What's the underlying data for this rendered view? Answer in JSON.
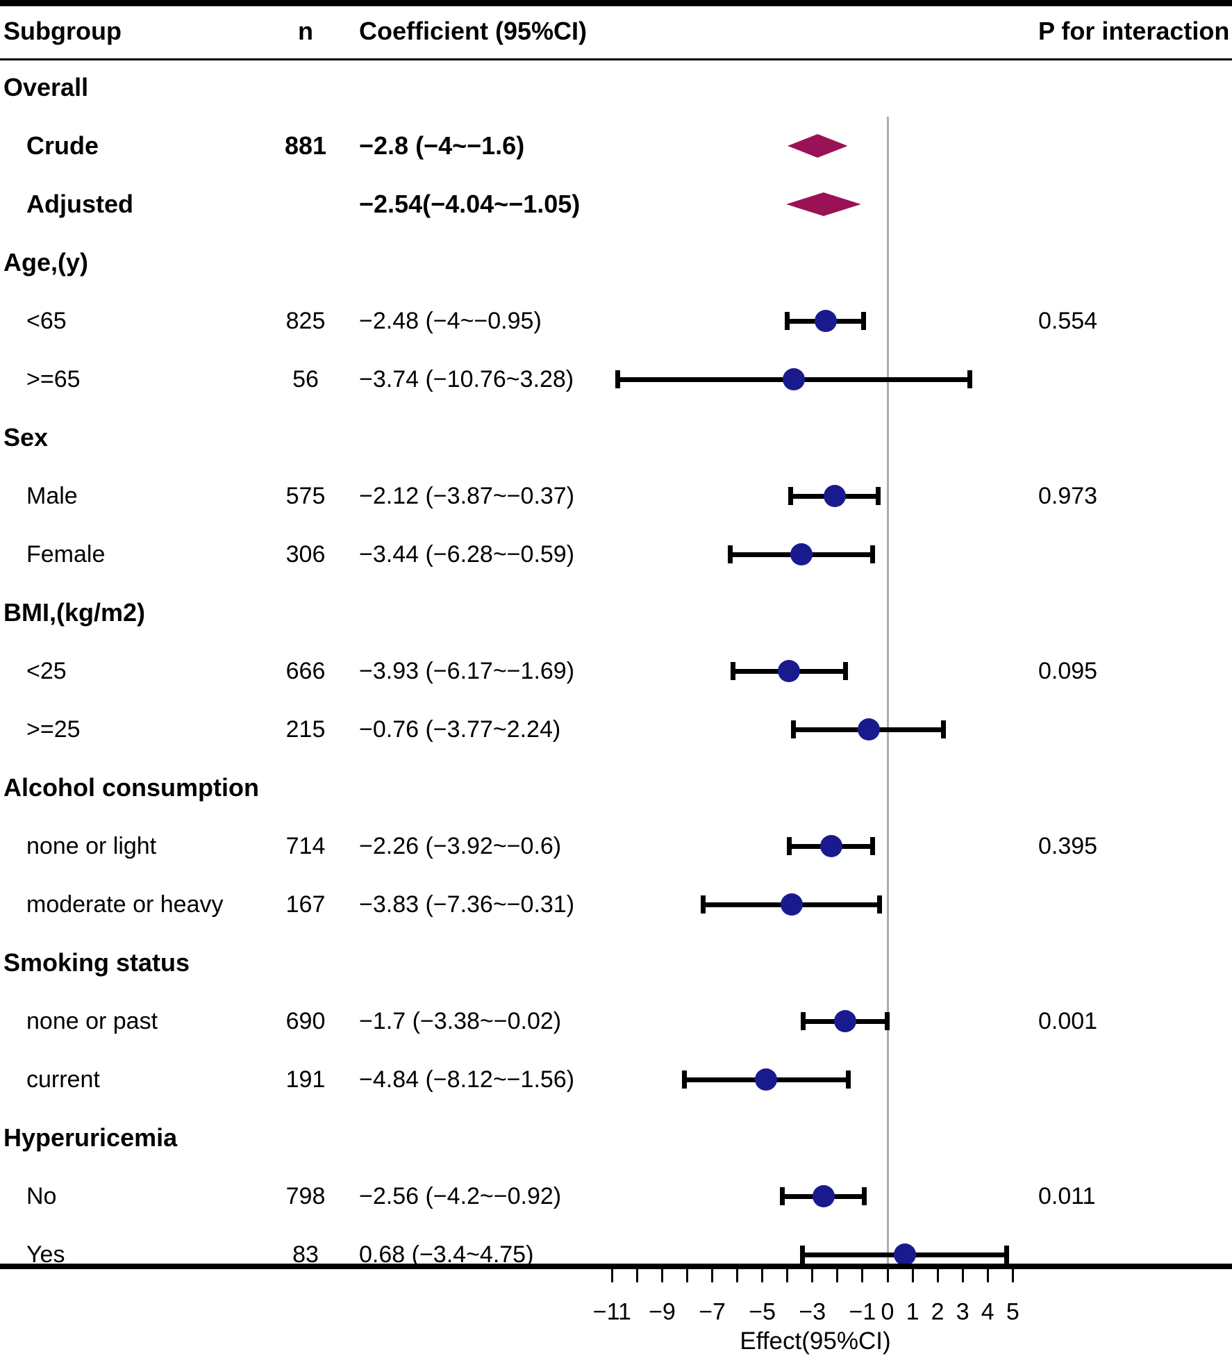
{
  "header": {
    "subgroup": "Subgroup",
    "n": "n",
    "coefficient": "Coefficient (95%CI)",
    "p_interaction": "P for interaction"
  },
  "colors": {
    "diamond": "#9B1156",
    "point": "#1A1A8F",
    "error_bar": "#000000",
    "refline": "#ACACAC",
    "text": "#000000"
  },
  "axis": {
    "label": "Effect(95%CI)",
    "tick_min": -11,
    "tick_max": 5,
    "tick_step": 1,
    "labeled_tick_values": [
      -11,
      -9,
      -7,
      -5,
      -3,
      -1,
      0,
      1,
      2,
      3,
      4,
      5
    ],
    "labeled_tick_texts": [
      "−11",
      "−9",
      "−7",
      "−5",
      "−3",
      "−1",
      "0",
      "1",
      "2",
      "3",
      "4",
      "5"
    ],
    "reference_line_x": 0
  },
  "rows": [
    {
      "type": "section",
      "label": "Overall"
    },
    {
      "type": "summary",
      "label": "Crude",
      "n": "881",
      "ci_text": "−2.8 (−4~−1.6)",
      "estimate": -2.8,
      "lo": -4,
      "hi": -1.6
    },
    {
      "type": "summary",
      "label": "Adjusted",
      "n": "",
      "ci_text": "−2.54(−4.04~−1.05)",
      "estimate": -2.54,
      "lo": -4.04,
      "hi": -1.05
    },
    {
      "type": "section",
      "label": "Age,(y)"
    },
    {
      "type": "item",
      "label": "<65",
      "n": "825",
      "ci_text": "−2.48 (−4~−0.95)",
      "estimate": -2.48,
      "lo": -4,
      "hi": -0.95,
      "p": "0.554"
    },
    {
      "type": "item",
      "label": ">=65",
      "n": "56",
      "ci_text": "−3.74 (−10.76~3.28)",
      "estimate": -3.74,
      "lo": -10.76,
      "hi": 3.28
    },
    {
      "type": "section",
      "label": "Sex"
    },
    {
      "type": "item",
      "label": "Male",
      "n": "575",
      "ci_text": "−2.12 (−3.87~−0.37)",
      "estimate": -2.12,
      "lo": -3.87,
      "hi": -0.37,
      "p": "0.973"
    },
    {
      "type": "item",
      "label": "Female",
      "n": "306",
      "ci_text": "−3.44 (−6.28~−0.59)",
      "estimate": -3.44,
      "lo": -6.28,
      "hi": -0.59
    },
    {
      "type": "section",
      "label": "BMI,(kg/m2)"
    },
    {
      "type": "item",
      "label": "<25",
      "n": "666",
      "ci_text": "−3.93 (−6.17~−1.69)",
      "estimate": -3.93,
      "lo": -6.17,
      "hi": -1.69,
      "p": "0.095"
    },
    {
      "type": "item",
      "label": ">=25",
      "n": "215",
      "ci_text": "−0.76 (−3.77~2.24)",
      "estimate": -0.76,
      "lo": -3.77,
      "hi": 2.24
    },
    {
      "type": "section",
      "label": "Alcohol consumption"
    },
    {
      "type": "item",
      "label": "none or light",
      "n": "714",
      "ci_text": "−2.26 (−3.92~−0.6)",
      "estimate": -2.26,
      "lo": -3.92,
      "hi": -0.6,
      "p": "0.395"
    },
    {
      "type": "item",
      "label": "moderate or heavy",
      "n": "167",
      "ci_text": "−3.83 (−7.36~−0.31)",
      "estimate": -3.83,
      "lo": -7.36,
      "hi": -0.31
    },
    {
      "type": "section",
      "label": "Smoking status"
    },
    {
      "type": "item",
      "label": "none or past",
      "n": "690",
      "ci_text": "−1.7 (−3.38~−0.02)",
      "estimate": -1.7,
      "lo": -3.38,
      "hi": -0.02,
      "p": "0.001"
    },
    {
      "type": "item",
      "label": "current",
      "n": "191",
      "ci_text": "−4.84 (−8.12~−1.56)",
      "estimate": -4.84,
      "lo": -8.12,
      "hi": -1.56
    },
    {
      "type": "section",
      "label": "Hyperuricemia"
    },
    {
      "type": "item",
      "label": "No",
      "n": "798",
      "ci_text": "−2.56 (−4.2~−0.92)",
      "estimate": -2.56,
      "lo": -4.2,
      "hi": -0.92,
      "p": "0.011"
    },
    {
      "type": "item",
      "label": "Yes",
      "n": "83",
      "ci_text": "0.68 (−3.4~4.75)",
      "estimate": 0.68,
      "lo": -3.4,
      "hi": 4.75
    }
  ],
  "chart_data": {
    "type": "scatter",
    "subtype": "forest-plot",
    "title": "",
    "xlabel": "Effect(95%CI)",
    "xlim": [
      -11.5,
      5.5
    ],
    "x_ticks_every": 1,
    "x_tick_labels": [
      -11,
      -9,
      -7,
      -5,
      -3,
      -1,
      0,
      1,
      2,
      3,
      4,
      5
    ],
    "reference_line_x": 0,
    "grid": false,
    "series": [
      {
        "name": "Overall summary",
        "marker": "diamond",
        "color": "#9B1156",
        "points": [
          {
            "label": "Crude",
            "n": 881,
            "x": -2.8,
            "ci": [
              -4,
              -1.6
            ]
          },
          {
            "label": "Adjusted",
            "x": -2.54,
            "ci": [
              -4.04,
              -1.05
            ]
          }
        ]
      },
      {
        "name": "Subgroups",
        "marker": "circle",
        "color": "#1A1A8F",
        "points": [
          {
            "group": "Age,(y)",
            "label": "<65",
            "n": 825,
            "x": -2.48,
            "ci": [
              -4,
              -0.95
            ],
            "p_interaction": 0.554
          },
          {
            "group": "Age,(y)",
            "label": ">=65",
            "n": 56,
            "x": -3.74,
            "ci": [
              -10.76,
              3.28
            ]
          },
          {
            "group": "Sex",
            "label": "Male",
            "n": 575,
            "x": -2.12,
            "ci": [
              -3.87,
              -0.37
            ],
            "p_interaction": 0.973
          },
          {
            "group": "Sex",
            "label": "Female",
            "n": 306,
            "x": -3.44,
            "ci": [
              -6.28,
              -0.59
            ]
          },
          {
            "group": "BMI,(kg/m2)",
            "label": "<25",
            "n": 666,
            "x": -3.93,
            "ci": [
              -6.17,
              -1.69
            ],
            "p_interaction": 0.095
          },
          {
            "group": "BMI,(kg/m2)",
            "label": ">=25",
            "n": 215,
            "x": -0.76,
            "ci": [
              -3.77,
              2.24
            ]
          },
          {
            "group": "Alcohol consumption",
            "label": "none or light",
            "n": 714,
            "x": -2.26,
            "ci": [
              -3.92,
              -0.6
            ],
            "p_interaction": 0.395
          },
          {
            "group": "Alcohol consumption",
            "label": "moderate or heavy",
            "n": 167,
            "x": -3.83,
            "ci": [
              -7.36,
              -0.31
            ]
          },
          {
            "group": "Smoking status",
            "label": "none or past",
            "n": 690,
            "x": -1.7,
            "ci": [
              -3.38,
              -0.02
            ],
            "p_interaction": 0.001
          },
          {
            "group": "Smoking status",
            "label": "current",
            "n": 191,
            "x": -4.84,
            "ci": [
              -8.12,
              -1.56
            ]
          },
          {
            "group": "Hyperuricemia",
            "label": "No",
            "n": 798,
            "x": -2.56,
            "ci": [
              -4.2,
              -0.92
            ],
            "p_interaction": 0.011
          },
          {
            "group": "Hyperuricemia",
            "label": "Yes",
            "n": 83,
            "x": 0.68,
            "ci": [
              -3.4,
              4.75
            ]
          }
        ]
      }
    ]
  }
}
